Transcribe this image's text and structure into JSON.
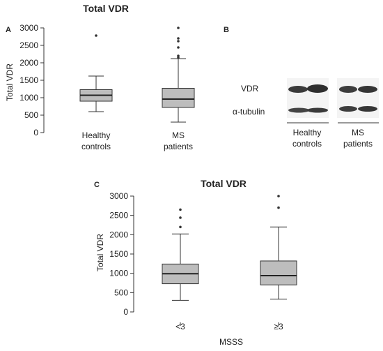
{
  "chart_data": [
    {
      "type": "box",
      "panel": "A",
      "title": "Total VDR",
      "ylabel": "Total VDR",
      "ylim": [
        0,
        3000
      ],
      "yticks": [
        0,
        500,
        1000,
        1500,
        2000,
        2500,
        3000
      ],
      "groups": [
        {
          "label_lines": [
            "Healthy",
            "controls"
          ],
          "min": 600,
          "q1": 900,
          "median": 1070,
          "q3": 1230,
          "max": 1620,
          "outliers": [
            2780
          ]
        },
        {
          "label_lines": [
            "MS",
            "patients"
          ],
          "min": 300,
          "q1": 720,
          "median": 960,
          "q3": 1270,
          "max": 2120,
          "outliers": [
            2150,
            2200,
            2440,
            2620,
            2700,
            3000
          ]
        }
      ]
    },
    {
      "type": "box",
      "panel": "C",
      "title": "Total VDR",
      "ylabel": "Total VDR",
      "xlabel": "MSSS",
      "ylim": [
        0,
        3000
      ],
      "yticks": [
        0,
        500,
        1000,
        1500,
        2000,
        2500,
        3000
      ],
      "groups": [
        {
          "label_lines": [
            "<3"
          ],
          "min": 300,
          "q1": 730,
          "median": 990,
          "q3": 1240,
          "max": 2020,
          "outliers": [
            2200,
            2440,
            2650
          ]
        },
        {
          "label_lines": [
            "≥3"
          ],
          "min": 330,
          "q1": 700,
          "median": 940,
          "q3": 1320,
          "max": 2200,
          "outliers": [
            2700,
            3000
          ]
        }
      ]
    }
  ],
  "western_blot": {
    "panel": "B",
    "bands": [
      "VDR",
      "α-tubulin"
    ],
    "groups": [
      [
        "Healthy",
        "controls"
      ],
      [
        "MS",
        "patients"
      ]
    ]
  }
}
